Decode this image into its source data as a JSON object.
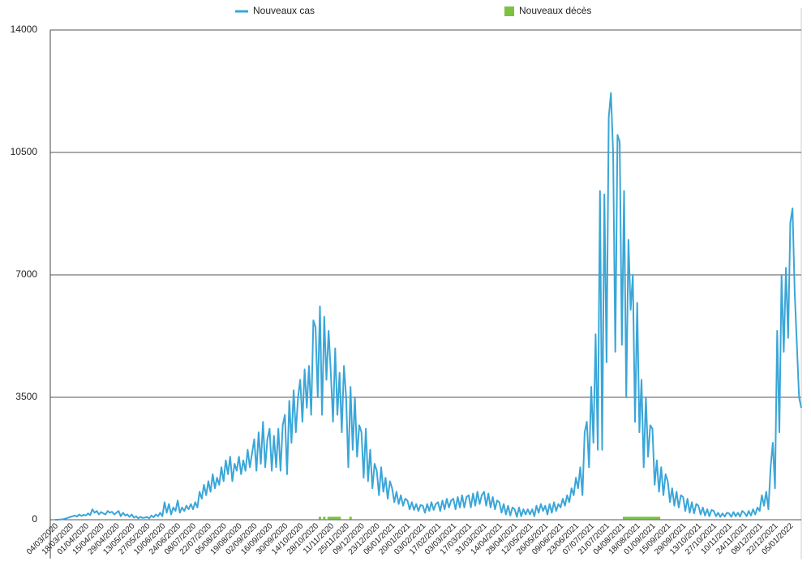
{
  "chart_data": {
    "type": "line",
    "categories": [
      "04/03/2020",
      null,
      null,
      null,
      null,
      null,
      null,
      "18/03/2020",
      null,
      null,
      null,
      null,
      null,
      null,
      "01/04/2020",
      null,
      null,
      null,
      null,
      null,
      null,
      "15/04/2020",
      null,
      null,
      null,
      null,
      null,
      null,
      "29/04/2020",
      null,
      null,
      null,
      null,
      null,
      null,
      "13/05/2020",
      null,
      null,
      null,
      null,
      null,
      null,
      "27/05/2020",
      null,
      null,
      null,
      null,
      null,
      null,
      "10/06/2020",
      null,
      null,
      null,
      null,
      null,
      null,
      "24/06/2020",
      null,
      null,
      null,
      null,
      null,
      null,
      "08/07/2020",
      null,
      null,
      null,
      null,
      null,
      null,
      "22/07/2020",
      null,
      null,
      null,
      null,
      null,
      null,
      "05/08/2020",
      null,
      null,
      null,
      null,
      null,
      null,
      "19/08/2020",
      null,
      null,
      null,
      null,
      null,
      null,
      "02/09/2020",
      null,
      null,
      null,
      null,
      null,
      null,
      "16/09/2020",
      null,
      null,
      null,
      null,
      null,
      null,
      "30/09/2020",
      null,
      null,
      null,
      null,
      null,
      null,
      "14/10/2020",
      null,
      null,
      null,
      null,
      null,
      null,
      "28/10/2020",
      null,
      null,
      null,
      null,
      null,
      null,
      "11/11/2020",
      null,
      null,
      null,
      null,
      null,
      null,
      "25/11/2020",
      null,
      null,
      null,
      null,
      null,
      null,
      "09/12/2020",
      null,
      null,
      null,
      null,
      null,
      null,
      "23/12/2020",
      null,
      null,
      null,
      null,
      null,
      null,
      "06/01/2021",
      null,
      null,
      null,
      null,
      null,
      null,
      "20/01/2021",
      null,
      null,
      null,
      null,
      null,
      null,
      "03/02/2021",
      null,
      null,
      null,
      null,
      null,
      null,
      "17/02/2021",
      null,
      null,
      null,
      null,
      null,
      null,
      "03/03/2021",
      null,
      null,
      null,
      null,
      null,
      null,
      "17/03/2021",
      null,
      null,
      null,
      null,
      null,
      null,
      "31/03/2021",
      null,
      null,
      null,
      null,
      null,
      null,
      "14/04/2021",
      null,
      null,
      null,
      null,
      null,
      null,
      "28/04/2021",
      null,
      null,
      null,
      null,
      null,
      null,
      "12/05/2021",
      null,
      null,
      null,
      null,
      null,
      null,
      "26/05/2021",
      null,
      null,
      null,
      null,
      null,
      null,
      "09/06/2021",
      null,
      null,
      null,
      null,
      null,
      null,
      "23/06/2021",
      null,
      null,
      null,
      null,
      null,
      null,
      "07/07/2021",
      null,
      null,
      null,
      null,
      null,
      null,
      "21/07/2021",
      null,
      null,
      null,
      null,
      null,
      null,
      "04/08/2021",
      null,
      null,
      null,
      null,
      null,
      null,
      "18/08/2021",
      null,
      null,
      null,
      null,
      null,
      null,
      "01/09/2021",
      null,
      null,
      null,
      null,
      null,
      null,
      "15/09/2021",
      null,
      null,
      null,
      null,
      null,
      null,
      "29/09/2021",
      null,
      null,
      null,
      null,
      null,
      null,
      "13/10/2021",
      null,
      null,
      null,
      null,
      null,
      null,
      "27/10/2021",
      null,
      null,
      null,
      null,
      null,
      null,
      "10/11/2021",
      null,
      null,
      null,
      null,
      null,
      null,
      "24/11/2021",
      null,
      null,
      null,
      null,
      null,
      null,
      "08/12/2021",
      null,
      null,
      null,
      null,
      null,
      null,
      "22/12/2021",
      null,
      null,
      null,
      null,
      null,
      null,
      "05/01/2022",
      null,
      null,
      null,
      null,
      null
    ],
    "series": [
      {
        "name": "Nouveaux cas",
        "color": "#3aa6d8",
        "values": [
          0,
          0,
          5,
          10,
          20,
          40,
          60,
          80,
          100,
          120,
          90,
          150,
          110,
          140,
          120,
          180,
          130,
          300,
          200,
          250,
          150,
          220,
          180,
          150,
          250,
          200,
          230,
          150,
          200,
          250,
          100,
          200,
          120,
          150,
          80,
          150,
          60,
          100,
          40,
          80,
          50,
          60,
          80,
          40,
          120,
          70,
          150,
          100,
          200,
          100,
          500,
          200,
          450,
          150,
          350,
          250,
          550,
          200,
          350,
          250,
          400,
          300,
          450,
          300,
          500,
          350,
          800,
          600,
          1000,
          700,
          1100,
          800,
          1300,
          900,
          1200,
          1000,
          1500,
          1100,
          1700,
          1300,
          1800,
          1100,
          1600,
          1400,
          1800,
          1300,
          1700,
          1400,
          2000,
          1500,
          1900,
          2300,
          1400,
          2500,
          1600,
          2800,
          1500,
          2300,
          2600,
          1400,
          2400,
          1500,
          2600,
          1400,
          2700,
          3000,
          1300,
          3400,
          2200,
          3700,
          2500,
          3500,
          4000,
          2800,
          4300,
          3200,
          4400,
          3000,
          5700,
          5500,
          3500,
          6100,
          3000,
          5800,
          4000,
          5400,
          4200,
          2800,
          4900,
          3000,
          4200,
          2500,
          4400,
          3500,
          1500,
          3800,
          2000,
          3500,
          1800,
          2700,
          2500,
          1200,
          2600,
          1100,
          2000,
          900,
          1600,
          1400,
          700,
          1500,
          800,
          1200,
          600,
          1100,
          900,
          500,
          800,
          450,
          700,
          400,
          600,
          550,
          300,
          500,
          280,
          450,
          250,
          420,
          400,
          200,
          450,
          250,
          500,
          280,
          450,
          500,
          250,
          550,
          300,
          600,
          350,
          550,
          600,
          300,
          650,
          350,
          700,
          350,
          650,
          700,
          350,
          750,
          400,
          800,
          450,
          700,
          800,
          400,
          750,
          350,
          650,
          300,
          550,
          500,
          200,
          450,
          150,
          400,
          120,
          350,
          300,
          80,
          350,
          100,
          300,
          150,
          300,
          150,
          300,
          100,
          400,
          200,
          450,
          250,
          400,
          150,
          450,
          200,
          500,
          250,
          450,
          350,
          600,
          400,
          700,
          500,
          900,
          700,
          1200,
          900,
          1500,
          700,
          2500,
          2800,
          1500,
          3800,
          2200,
          5300,
          2000,
          9400,
          2000,
          9300,
          4500,
          11500,
          12200,
          10500,
          4800,
          11000,
          10800,
          5000,
          9400,
          3500,
          8000,
          6000,
          7000,
          2800,
          6200,
          2500,
          4000,
          1500,
          3500,
          1800,
          2700,
          2600,
          1000,
          1700,
          800,
          1500,
          700,
          1300,
          1100,
          500,
          900,
          400,
          800,
          350,
          700,
          650,
          250,
          600,
          200,
          500,
          180,
          450,
          400,
          150,
          350,
          120,
          300,
          100,
          280,
          250,
          100,
          200,
          80,
          180,
          90,
          200,
          180,
          80,
          220,
          100,
          200,
          90,
          250,
          200,
          100,
          250,
          120,
          300,
          150,
          350,
          250,
          700,
          400,
          800,
          300,
          1500,
          2200,
          900,
          5400,
          2500,
          7000,
          4800,
          7200,
          5200,
          8500,
          8900,
          6500,
          5000,
          3500,
          3200
        ]
      },
      {
        "name": "Nouveaux décès",
        "color": "#7cc143",
        "values": [
          null,
          null,
          null,
          null,
          null,
          null,
          null,
          null,
          null,
          null,
          null,
          null,
          null,
          null,
          null,
          null,
          null,
          null,
          null,
          null,
          null,
          null,
          null,
          null,
          null,
          null,
          null,
          null,
          null,
          null,
          null,
          null,
          null,
          null,
          null,
          null,
          null,
          null,
          null,
          null,
          null,
          null,
          null,
          null,
          null,
          null,
          null,
          null,
          null,
          null,
          null,
          null,
          null,
          null,
          null,
          null,
          null,
          null,
          null,
          null,
          null,
          null,
          null,
          null,
          null,
          null,
          null,
          null,
          null,
          null,
          null,
          null,
          null,
          null,
          null,
          null,
          null,
          null,
          null,
          null,
          null,
          null,
          null,
          null,
          null,
          null,
          null,
          null,
          null,
          null,
          null,
          null,
          null,
          null,
          null,
          null,
          null,
          null,
          null,
          null,
          null,
          null,
          null,
          null,
          null,
          null,
          null,
          null,
          null,
          null,
          null,
          null,
          null,
          null,
          null,
          null,
          null,
          null,
          null,
          null,
          null,
          50,
          null,
          50,
          null,
          50,
          50,
          50,
          50,
          50,
          50,
          null,
          null,
          null,
          null,
          50,
          null,
          null,
          null,
          null,
          null,
          null,
          null,
          null,
          null,
          null,
          null,
          null,
          null,
          null,
          null,
          null,
          null,
          null,
          null,
          null,
          null,
          null,
          null,
          null,
          null,
          null,
          null,
          null,
          null,
          null,
          null,
          null,
          null,
          null,
          null,
          null,
          null,
          null,
          null,
          null,
          null,
          null,
          null,
          null,
          null,
          null,
          null,
          null,
          null,
          null,
          null,
          null,
          null,
          null,
          null,
          null,
          null,
          null,
          null,
          null,
          null,
          null,
          null,
          null,
          null,
          null,
          null,
          null,
          null,
          null,
          null,
          null,
          null,
          null,
          null,
          null,
          null,
          null,
          null,
          null,
          null,
          null,
          null,
          null,
          null,
          null,
          null,
          null,
          null,
          null,
          null,
          null,
          null,
          null,
          null,
          null,
          null,
          null,
          null,
          null,
          null,
          null,
          null,
          null,
          null,
          null,
          null,
          null,
          null,
          null,
          null,
          null,
          null,
          null,
          null,
          null,
          null,
          null,
          null,
          null,
          null,
          null,
          null,
          null,
          50,
          50,
          50,
          50,
          50,
          50,
          50,
          50,
          50,
          50,
          50,
          50,
          50,
          50,
          50,
          50,
          50,
          null,
          null,
          null,
          null,
          null,
          null,
          null,
          null,
          null,
          null,
          null,
          null,
          null,
          null,
          null,
          null,
          null,
          null,
          null,
          null,
          null,
          null,
          null,
          null,
          null,
          null,
          null,
          null,
          null,
          null,
          null,
          null,
          null,
          null,
          null,
          null,
          null,
          null,
          null,
          null,
          null,
          null,
          null,
          null,
          null,
          null,
          null,
          null,
          null,
          null,
          null,
          null,
          null,
          null,
          null,
          null,
          null,
          null,
          null,
          null,
          null,
          null,
          null,
          null,
          null
        ]
      }
    ],
    "ylim": [
      0,
      14000
    ],
    "yticks": [
      0,
      3500,
      7000,
      10500,
      14000
    ],
    "grid": true,
    "legend": "top"
  }
}
